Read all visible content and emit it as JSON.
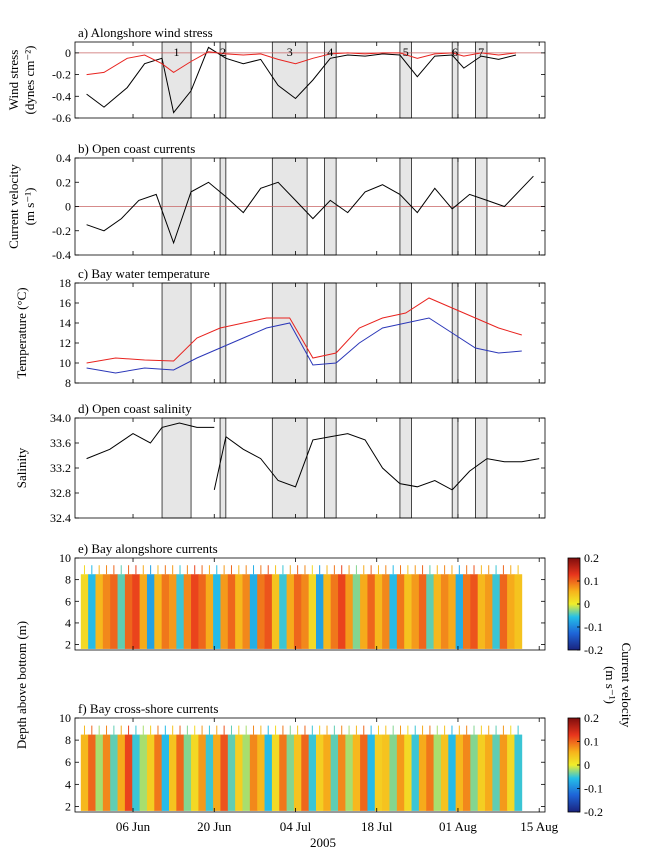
{
  "figure": {
    "year_label": "2005",
    "x_tick_labels": [
      "06 Jun",
      "20 Jun",
      "04 Jul",
      "18 Jul",
      "01 Aug",
      "15 Aug"
    ],
    "event_labels": [
      "1",
      "2",
      "3",
      "4",
      "5",
      "6",
      "7"
    ],
    "colors": {
      "red": "#e8231f",
      "blue": "#2b37b8",
      "black": "#000000",
      "shade": "#e6e6e6",
      "zero_line": "#c86464"
    },
    "colorbar": {
      "label_line1": "Current velocity",
      "label_line2": "(m s⁻¹)",
      "ticks": [
        "0.2",
        "0.1",
        "0",
        "-0.1",
        "-0.2"
      ]
    }
  },
  "chart_data": [
    {
      "id": "a",
      "type": "line",
      "title": "a) Alongshore wind stress",
      "ylabel_line1": "Wind stress",
      "ylabel_line2": "(dynes cm⁻²)",
      "ylim": [
        -0.6,
        0.1
      ],
      "yticks": [
        -0.6,
        -0.4,
        -0.2,
        0
      ],
      "ytick_labels": [
        "-0.6",
        "-0.4",
        "-0.2",
        "0"
      ],
      "zero_line": true,
      "series": [
        {
          "color": "#000000",
          "x": [
            "05-29",
            "06-01",
            "06-05",
            "06-08",
            "06-11",
            "06-13",
            "06-16",
            "06-19",
            "06-22",
            "06-25",
            "06-28",
            "07-01",
            "07-04",
            "07-07",
            "07-10",
            "07-13",
            "07-16",
            "07-19",
            "07-22",
            "07-25",
            "07-28",
            "07-31",
            "08-02",
            "08-05",
            "08-08",
            "08-11"
          ],
          "values": [
            -0.38,
            -0.5,
            -0.32,
            -0.1,
            -0.05,
            -0.55,
            -0.35,
            0.05,
            -0.05,
            -0.1,
            -0.06,
            -0.3,
            -0.42,
            -0.25,
            -0.05,
            -0.02,
            -0.03,
            -0.01,
            -0.02,
            -0.22,
            -0.03,
            -0.02,
            -0.14,
            -0.03,
            -0.06,
            -0.02
          ]
        },
        {
          "color": "#e8231f",
          "x": [
            "05-29",
            "06-01",
            "06-05",
            "06-08",
            "06-11",
            "06-13",
            "06-16",
            "06-19",
            "06-22",
            "06-25",
            "06-28",
            "07-01",
            "07-04",
            "07-07",
            "07-10",
            "07-13",
            "07-16",
            "07-19",
            "07-22",
            "07-25",
            "07-28",
            "07-31",
            "08-02",
            "08-05",
            "08-08",
            "08-11"
          ],
          "values": [
            -0.2,
            -0.18,
            -0.05,
            -0.02,
            -0.1,
            -0.18,
            -0.08,
            0.01,
            -0.01,
            -0.02,
            -0.01,
            -0.06,
            -0.1,
            -0.05,
            -0.01,
            0,
            -0.01,
            0,
            0,
            -0.05,
            -0.01,
            0,
            -0.03,
            0,
            -0.02,
            0
          ]
        }
      ]
    },
    {
      "id": "b",
      "type": "line",
      "title": "b) Open coast currents",
      "ylabel_line1": "Current velocity",
      "ylabel_line2": "(m s⁻¹)",
      "ylim": [
        -0.4,
        0.4
      ],
      "yticks": [
        -0.4,
        -0.2,
        0,
        0.2,
        0.4
      ],
      "ytick_labels": [
        "-0.4",
        "-0.2",
        "0",
        "0.2",
        "0.4"
      ],
      "zero_line": true,
      "series": [
        {
          "color": "#000000",
          "x": [
            "05-29",
            "06-01",
            "06-04",
            "06-07",
            "06-10",
            "06-13",
            "06-16",
            "06-19",
            "06-22",
            "06-25",
            "06-28",
            "07-01",
            "07-04",
            "07-07",
            "07-10",
            "07-13",
            "07-16",
            "07-19",
            "07-22",
            "07-25",
            "07-28",
            "07-31",
            "08-03",
            "08-06",
            "08-09",
            "08-12",
            "08-14"
          ],
          "values": [
            -0.15,
            -0.2,
            -0.1,
            0.05,
            0.1,
            -0.3,
            0.12,
            0.2,
            0.08,
            -0.05,
            0.15,
            0.2,
            0.05,
            -0.1,
            0.05,
            -0.05,
            0.12,
            0.18,
            0.1,
            -0.05,
            0.15,
            -0.02,
            0.1,
            0.05,
            0.0,
            0.15,
            0.25
          ]
        }
      ]
    },
    {
      "id": "c",
      "type": "line",
      "title": "c) Bay water temperature",
      "ylabel_line1": "Temperature (°C)",
      "ylim": [
        8,
        18
      ],
      "yticks": [
        8,
        10,
        12,
        14,
        16,
        18
      ],
      "ytick_labels": [
        "8",
        "10",
        "12",
        "14",
        "16",
        "18"
      ],
      "zero_line": false,
      "series": [
        {
          "color": "#e8231f",
          "x": [
            "05-29",
            "06-03",
            "06-08",
            "06-13",
            "06-17",
            "06-21",
            "06-25",
            "06-29",
            "07-03",
            "07-07",
            "07-11",
            "07-15",
            "07-19",
            "07-23",
            "07-27",
            "07-31",
            "08-04",
            "08-08",
            "08-12"
          ],
          "values": [
            10,
            10.5,
            10.3,
            10.2,
            12.5,
            13.5,
            14,
            14.5,
            14.5,
            10.5,
            11,
            13.5,
            14.5,
            15,
            16.5,
            15.5,
            14.5,
            13.5,
            12.8
          ]
        },
        {
          "color": "#2b37b8",
          "x": [
            "05-29",
            "06-03",
            "06-08",
            "06-13",
            "06-17",
            "06-21",
            "06-25",
            "06-29",
            "07-03",
            "07-07",
            "07-11",
            "07-15",
            "07-19",
            "07-23",
            "07-27",
            "07-31",
            "08-04",
            "08-08",
            "08-12"
          ],
          "values": [
            9.5,
            9,
            9.5,
            9.3,
            10.5,
            11.5,
            12.5,
            13.5,
            14,
            9.8,
            10,
            12,
            13.5,
            14,
            14.5,
            13,
            11.5,
            11,
            11.2
          ]
        }
      ]
    },
    {
      "id": "d",
      "type": "line",
      "title": "d) Open coast salinity",
      "ylabel_line1": "Salinity",
      "ylim": [
        32.4,
        34.0
      ],
      "yticks": [
        32.4,
        32.8,
        33.2,
        33.6,
        34.0
      ],
      "ytick_labels": [
        "32.4",
        "32.8",
        "33.2",
        "33.6",
        "34.0"
      ],
      "zero_line": false,
      "series": [
        {
          "color": "#000000",
          "x": [
            "05-29",
            "06-02",
            "06-06",
            "06-09",
            "06-11",
            "06-14",
            "06-17",
            "06-20"
          ],
          "values": [
            33.35,
            33.5,
            33.75,
            33.6,
            33.85,
            33.92,
            33.85,
            33.85
          ]
        },
        {
          "color": "#000000",
          "x": [
            "06-20",
            "06-22",
            "06-25",
            "06-28",
            "07-01",
            "07-04",
            "07-07",
            "07-10",
            "07-13",
            "07-16",
            "07-19",
            "07-22",
            "07-25",
            "07-28",
            "07-31",
            "08-03",
            "08-06",
            "08-09",
            "08-12",
            "08-15"
          ],
          "values": [
            32.85,
            33.7,
            33.5,
            33.35,
            33.0,
            32.9,
            33.65,
            33.7,
            33.75,
            33.65,
            33.2,
            32.95,
            32.9,
            33.0,
            32.85,
            33.15,
            33.35,
            33.3,
            33.3,
            33.35
          ]
        }
      ]
    },
    {
      "id": "e",
      "type": "heatmap",
      "title": "e) Bay alongshore currents",
      "ylim": [
        1.5,
        10
      ],
      "yticks": [
        2,
        4,
        6,
        8,
        10
      ],
      "ytick_labels": [
        "2",
        "4",
        "6",
        "8",
        "10"
      ],
      "clim": [
        -0.2,
        0.2
      ],
      "x_range": [
        "05-28",
        "08-12"
      ],
      "depth_range": [
        1.6,
        8.5
      ],
      "values": [
        0.02,
        -0.06,
        0.05,
        0.08,
        0.1,
        -0.04,
        0.1,
        0.12,
        0.06,
        -0.08,
        0.05,
        0.09,
        0.07,
        -0.05,
        0.08,
        0.12,
        0.1,
        0.06,
        -0.06,
        0.07,
        0.1,
        0.05,
        0.08,
        -0.07,
        0.09,
        0.11,
        0.04,
        -0.05,
        0.06,
        0.1,
        0.08,
        0.02,
        -0.08,
        0.05,
        0.09,
        0.12,
        0.07,
        -0.03,
        0.06,
        0.1,
        0.05,
        0.08,
        -0.06,
        0.09,
        0.04,
        0.07,
        0.1,
        -0.04,
        0.05,
        0.08,
        0.06,
        -0.07,
        0.09,
        0.11,
        0.05,
        0.07,
        -0.05,
        0.1,
        0.06,
        0.04
      ]
    },
    {
      "id": "f",
      "type": "heatmap",
      "title": "f) Bay cross-shore currents",
      "ylim": [
        1.5,
        10
      ],
      "yticks": [
        2,
        4,
        6,
        8,
        10
      ],
      "ytick_labels": [
        "2",
        "4",
        "6",
        "8",
        "10"
      ],
      "clim": [
        -0.2,
        0.2
      ],
      "x_range": [
        "05-28",
        "08-12"
      ],
      "depth_range": [
        1.6,
        8.5
      ],
      "values": [
        0.05,
        0.1,
        -0.02,
        0.08,
        -0.04,
        0.06,
        0.12,
        -0.05,
        -0.02,
        0.03,
        0.09,
        -0.06,
        0.04,
        0.1,
        -0.03,
        0.02,
        0.07,
        -0.05,
        0.06,
        0.11,
        -0.04,
        0.03,
        -0.02,
        0.08,
        0.05,
        -0.06,
        0.02,
        0.09,
        -0.03,
        0.04,
        0.1,
        -0.05,
        0.03,
        0.06,
        -0.04,
        0.08,
        -0.02,
        0.05,
        0.1,
        -0.06,
        0.03,
        0.04,
        -0.03,
        0.07,
        0.02,
        -0.05,
        0.06,
        0.09,
        -0.02,
        0.04,
        -0.06,
        0.05,
        0.08,
        -0.03,
        0.03,
        0.06,
        -0.04,
        0.07,
        0.02,
        -0.05
      ]
    }
  ],
  "events": [
    {
      "label": "1",
      "start": "06-11",
      "end": "06-16"
    },
    {
      "label": "2",
      "start": "06-21",
      "end": "06-22"
    },
    {
      "label": "3",
      "start": "06-30",
      "end": "07-06"
    },
    {
      "label": "4",
      "start": "07-09",
      "end": "07-11"
    },
    {
      "label": "5",
      "start": "07-22",
      "end": "07-24"
    },
    {
      "label": "6",
      "start": "07-31",
      "end": "08-01"
    },
    {
      "label": "7",
      "start": "08-04",
      "end": "08-06"
    }
  ]
}
